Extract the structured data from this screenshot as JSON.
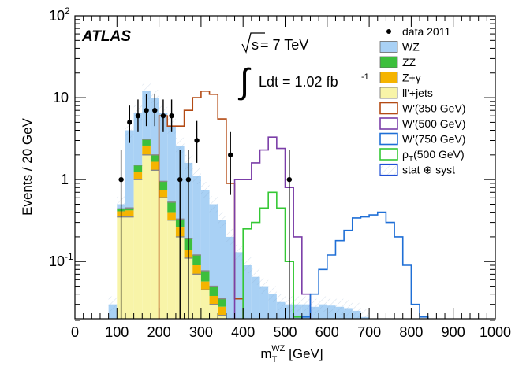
{
  "chart_data": {
    "type": "bar",
    "experiment_label": "ATLAS",
    "energy_label": {
      "prefix": "s",
      "text": " = 7 TeV"
    },
    "lumi_label": {
      "integral": "∫",
      "text": "Ldt = 1.02 fb",
      "superscript": "-1"
    },
    "xlabel": {
      "main": "m",
      "subscript": "T",
      "superscript": "WZ",
      "suffix": " [GeV]"
    },
    "ylabel": "Events / 20 GeV",
    "xlim": [
      0,
      1000
    ],
    "ylim": [
      0.02,
      100
    ],
    "yscale": "log",
    "bin_width": 20,
    "x_ticks": [
      0,
      100,
      200,
      300,
      400,
      500,
      600,
      700,
      800,
      900,
      1000
    ],
    "y_ticks": [
      {
        "value": 100,
        "base": "10",
        "exp": "2"
      },
      {
        "value": 10,
        "base": "10",
        "exp": ""
      },
      {
        "value": 1,
        "base": "1",
        "exp": ""
      },
      {
        "value": 0.1,
        "base": "10",
        "exp": "-1"
      }
    ],
    "colors": {
      "wz": "#a9d1f5",
      "zz": "#3cbf3c",
      "zgamma": "#f5b400",
      "lljets": "#f8f4a8",
      "wprime350": "#b34a14",
      "wprime500": "#7b3ea8",
      "wprime750": "#1f6fd6",
      "rho500": "#35c835"
    },
    "legend": [
      {
        "key": "data",
        "label": "data 2011",
        "style": "marker"
      },
      {
        "key": "wz",
        "label": "WZ",
        "style": "fill"
      },
      {
        "key": "zz",
        "label": "ZZ",
        "style": "fill"
      },
      {
        "key": "zgamma",
        "label": "Z+γ",
        "style": "fill"
      },
      {
        "key": "lljets",
        "label": "ll'+jets",
        "style": "fill"
      },
      {
        "key": "wprime350",
        "label": "W'(350 GeV)",
        "style": "line"
      },
      {
        "key": "wprime500",
        "label": "W'(500 GeV)",
        "style": "line"
      },
      {
        "key": "wprime750",
        "label": "W'(750 GeV)",
        "style": "line"
      },
      {
        "key": "rho500",
        "label": "(500 GeV)",
        "rho": "ρ",
        "rho_sub": "T",
        "style": "line"
      },
      {
        "key": "syst",
        "label": "stat ⊕ syst",
        "style": "box"
      }
    ],
    "stacked_background": {
      "bins_start": [
        80,
        100,
        120,
        140,
        160,
        180,
        200,
        220,
        240,
        260,
        280,
        300,
        320,
        340,
        360,
        380,
        400,
        420,
        440,
        460,
        480,
        500,
        520,
        540,
        560,
        580,
        600,
        620,
        640,
        660,
        680
      ],
      "lljets": [
        0,
        0.35,
        0.35,
        1.0,
        2.0,
        1.3,
        0.6,
        0.32,
        0.2,
        0.11,
        0.07,
        0.045,
        0.03,
        0.022,
        0,
        0,
        0,
        0,
        0,
        0,
        0,
        0,
        0,
        0,
        0,
        0,
        0,
        0,
        0,
        0,
        0
      ],
      "zgamma": [
        0,
        0.06,
        0.07,
        0.25,
        0.6,
        0.35,
        0.15,
        0.08,
        0.06,
        0.03,
        0.02,
        0.012,
        0.008,
        0.006,
        0,
        0,
        0,
        0,
        0,
        0,
        0,
        0,
        0,
        0,
        0,
        0,
        0,
        0,
        0,
        0,
        0
      ],
      "zz": [
        0,
        0.03,
        0.03,
        0.25,
        0.5,
        0.35,
        0.2,
        0.13,
        0.07,
        0.05,
        0.03,
        0.02,
        0.012,
        0.007,
        0.005,
        0,
        0,
        0,
        0,
        0,
        0,
        0,
        0,
        0,
        0,
        0,
        0,
        0,
        0,
        0,
        0
      ],
      "wz_total": [
        0.03,
        0.5,
        4.0,
        6.5,
        12.0,
        10.0,
        6.5,
        4.5,
        2.6,
        1.6,
        1.1,
        0.75,
        0.5,
        0.32,
        0.2,
        0.13,
        0.09,
        0.065,
        0.05,
        0.04,
        0.032,
        0.03,
        0.03,
        0.03,
        0.028,
        0.03,
        0.029,
        0.028,
        0.027,
        0.025,
        0.021
      ]
    },
    "signals": [
      {
        "key": "wprime350",
        "bins_start": [
          200,
          220,
          240,
          260,
          280,
          300,
          320,
          340,
          360,
          380,
          400
        ],
        "values": [
          6.0,
          4.5,
          4.5,
          7.0,
          10.0,
          12.0,
          11.0,
          5.5,
          0.9,
          0.035,
          0
        ]
      },
      {
        "key": "wprime500",
        "bins_start": [
          380,
          400,
          420,
          440,
          460,
          480,
          500,
          520,
          540,
          560
        ],
        "values": [
          1.0,
          1.0,
          1.6,
          2.3,
          3.3,
          2.4,
          0.8,
          0.2,
          0.04,
          0
        ]
      },
      {
        "key": "rho500",
        "bins_start": [
          400,
          420,
          440,
          460,
          480,
          500,
          520,
          540
        ],
        "values": [
          0.25,
          0.3,
          0.45,
          0.7,
          0.45,
          0.1,
          0.021,
          0
        ]
      },
      {
        "key": "wprime750",
        "bins_start": [
          540,
          560,
          580,
          600,
          620,
          640,
          660,
          680,
          700,
          720,
          740,
          760,
          780,
          800,
          820,
          840
        ],
        "values": [
          0.021,
          0.04,
          0.08,
          0.12,
          0.18,
          0.24,
          0.34,
          0.35,
          0.37,
          0.4,
          0.3,
          0.2,
          0.09,
          0.03,
          0.021,
          0
        ]
      }
    ],
    "data_points": [
      {
        "x": 110,
        "y": 1.0,
        "lo": 0.02,
        "hi": 2.3
      },
      {
        "x": 130,
        "y": 5.0,
        "lo": 2.8,
        "hi": 8.0
      },
      {
        "x": 150,
        "y": 6.0,
        "lo": 3.8,
        "hi": 9.5
      },
      {
        "x": 170,
        "y": 7.0,
        "lo": 4.5,
        "hi": 11.0
      },
      {
        "x": 190,
        "y": 7.0,
        "lo": 4.5,
        "hi": 11.0
      },
      {
        "x": 210,
        "y": 6.0,
        "lo": 3.8,
        "hi": 9.5
      },
      {
        "x": 230,
        "y": 6.0,
        "lo": 3.8,
        "hi": 9.5
      },
      {
        "x": 250,
        "y": 1.0,
        "lo": 0.02,
        "hi": 2.3
      },
      {
        "x": 270,
        "y": 1.0,
        "lo": 0.02,
        "hi": 2.3
      },
      {
        "x": 290,
        "y": 3.0,
        "lo": 1.6,
        "hi": 5.2
      },
      {
        "x": 370,
        "y": 2.0,
        "lo": 0.65,
        "hi": 3.8
      },
      {
        "x": 510,
        "y": 1.0,
        "lo": 0.02,
        "hi": 2.3
      }
    ]
  }
}
